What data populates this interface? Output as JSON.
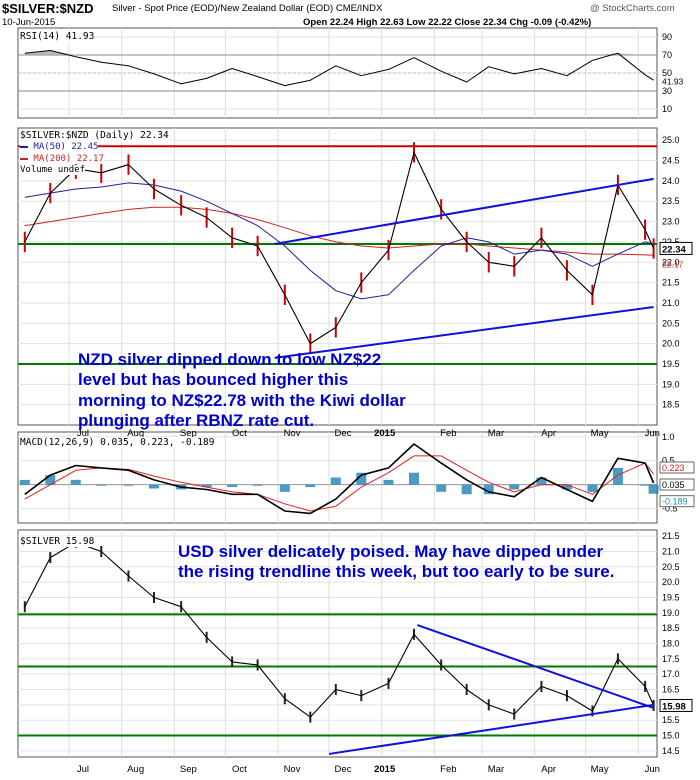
{
  "header": {
    "symbol": "$SILVER:$NZD",
    "description": "Silver - Spot Price (EOD)/New Zealand Dollar (EOD)",
    "exchange": "CME/INDX",
    "date": "10-Jun-2015",
    "ohlc": "Open 22.24  High 22.63  Low 22.22  Close 22.34  Chg -0.09 (-0.42%)",
    "watermark": "@ StockCharts.com"
  },
  "colors": {
    "price_line": "#000000",
    "ma50": "#1f1fa0",
    "ma200": "#cc2222",
    "trendline": "#1010dd",
    "support": "#007700",
    "resistance": "#cc0000",
    "macd": "#000000",
    "signal": "#dd2222",
    "histogram": "#2a8ab8",
    "annotation": "#0000cc",
    "rsi_band": "#aaaaaa",
    "last_box": "#000000"
  },
  "chart_data": [
    {
      "type": "line",
      "title": "RSI(14) 41.93",
      "y_ticks": [
        "90",
        "70",
        "50",
        "30",
        "10"
      ],
      "ylim": [
        0,
        100
      ],
      "levels": [
        70,
        30
      ],
      "last_value_label": "41.93",
      "x": [
        "2014-06-05",
        "2014-06-20",
        "2014-07-05",
        "2014-07-20",
        "2014-08-05",
        "2014-08-20",
        "2014-09-05",
        "2014-09-20",
        "2014-10-05",
        "2014-10-20",
        "2014-11-05",
        "2014-11-20",
        "2014-12-05",
        "2014-12-20",
        "2015-01-05",
        "2015-01-20",
        "2015-02-05",
        "2015-02-20",
        "2015-03-05",
        "2015-03-20",
        "2015-04-05",
        "2015-04-20",
        "2015-05-05",
        "2015-05-20",
        "2015-06-05",
        "2015-06-10"
      ],
      "series": [
        {
          "values": [
            72,
            75,
            68,
            62,
            58,
            49,
            38,
            44,
            55,
            46,
            36,
            42,
            58,
            47,
            54,
            67,
            52,
            40,
            57,
            49,
            55,
            47,
            64,
            72,
            48,
            42
          ]
        }
      ]
    },
    {
      "type": "line",
      "title": "$SILVER:$NZD (Daily) 22.34",
      "legend": [
        "MA(50) 22.45",
        "MA(200) 22.17",
        "Volume undef"
      ],
      "y_ticks": [
        "25.0",
        "24.5",
        "24.0",
        "23.5",
        "23.0",
        "22.5",
        "22.0",
        "21.5",
        "21.0",
        "20.5",
        "20.0",
        "19.5",
        "19.0",
        "18.5"
      ],
      "ylim": [
        18.0,
        25.3
      ],
      "x_ticks": [
        "Jul",
        "Aug",
        "Sep",
        "Oct",
        "Nov",
        "Dec",
        "2015",
        "Feb",
        "Mar",
        "Apr",
        "May",
        "Jun"
      ],
      "last_value_label": "22.34",
      "ma200_value_label": "22.17",
      "horizontal_lines": [
        {
          "y": 24.85,
          "color": "red"
        },
        {
          "y": 22.45,
          "color": "green"
        },
        {
          "y": 19.5,
          "color": "green"
        }
      ],
      "trendlines": [
        {
          "from": [
            "2014-10-30",
            22.45
          ],
          "to": [
            "2015-06-10",
            24.05
          ]
        },
        {
          "from": [
            "2014-10-30",
            19.65
          ],
          "to": [
            "2015-06-10",
            20.9
          ]
        }
      ],
      "x": [
        "2014-06-05",
        "2014-06-20",
        "2014-07-05",
        "2014-07-20",
        "2014-08-05",
        "2014-08-20",
        "2014-09-05",
        "2014-09-20",
        "2014-10-05",
        "2014-10-20",
        "2014-11-05",
        "2014-11-20",
        "2014-12-05",
        "2014-12-20",
        "2015-01-05",
        "2015-01-20",
        "2015-02-05",
        "2015-02-20",
        "2015-03-05",
        "2015-03-20",
        "2015-04-05",
        "2015-04-20",
        "2015-05-05",
        "2015-05-20",
        "2015-06-05",
        "2015-06-10"
      ],
      "series": [
        {
          "name": "$SILVER:$NZD",
          "values": [
            22.5,
            23.7,
            24.3,
            24.2,
            24.4,
            23.8,
            23.4,
            23.1,
            22.6,
            22.4,
            21.2,
            20.0,
            20.4,
            21.5,
            22.3,
            24.7,
            23.3,
            22.5,
            22.0,
            21.9,
            22.6,
            21.8,
            21.2,
            23.9,
            22.8,
            22.34
          ]
        },
        {
          "name": "MA(50) 22.45",
          "values": [
            23.6,
            23.7,
            23.8,
            23.85,
            23.95,
            23.9,
            23.75,
            23.5,
            23.2,
            22.9,
            22.4,
            21.8,
            21.3,
            21.1,
            21.2,
            21.8,
            22.4,
            22.6,
            22.5,
            22.2,
            22.3,
            22.2,
            21.9,
            22.2,
            22.5,
            22.45
          ]
        },
        {
          "name": "MA(200) 22.17",
          "values": [
            22.9,
            23.0,
            23.1,
            23.2,
            23.3,
            23.35,
            23.35,
            23.3,
            23.2,
            23.05,
            22.85,
            22.65,
            22.5,
            22.4,
            22.35,
            22.4,
            22.45,
            22.45,
            22.4,
            22.35,
            22.3,
            22.25,
            22.2,
            22.2,
            22.18,
            22.17
          ]
        }
      ],
      "annotation": "NZD silver dipped down to low NZ$22 level but has bounced higher this morning to NZ$22.78 with the Kiwi dollar plunging after RBNZ rate cut."
    },
    {
      "type": "line",
      "title": "MACD(12,26,9) 0.035, 0.223, -0.189",
      "y_ticks": [
        "1.0",
        "0.5",
        "0.0",
        "-0.5"
      ],
      "ylim": [
        -0.8,
        1.1
      ],
      "value_labels": [
        "0.223",
        "0.035",
        "-0.189"
      ],
      "x": [
        "2014-06-05",
        "2014-06-20",
        "2014-07-05",
        "2014-07-20",
        "2014-08-05",
        "2014-08-20",
        "2014-09-05",
        "2014-09-20",
        "2014-10-05",
        "2014-10-20",
        "2014-11-05",
        "2014-11-20",
        "2014-12-05",
        "2014-12-20",
        "2015-01-05",
        "2015-01-20",
        "2015-02-05",
        "2015-02-20",
        "2015-03-05",
        "2015-03-20",
        "2015-04-05",
        "2015-04-20",
        "2015-05-05",
        "2015-05-20",
        "2015-06-05",
        "2015-06-10"
      ],
      "series": [
        {
          "name": "MACD",
          "values": [
            -0.2,
            0.2,
            0.4,
            0.35,
            0.3,
            0.1,
            -0.05,
            -0.1,
            -0.2,
            -0.2,
            -0.55,
            -0.6,
            -0.3,
            0.2,
            0.35,
            0.85,
            0.45,
            0.1,
            -0.15,
            -0.25,
            0.15,
            -0.1,
            -0.35,
            0.55,
            0.45,
            0.035
          ]
        },
        {
          "name": "Signal",
          "values": [
            -0.3,
            0.0,
            0.3,
            0.35,
            0.32,
            0.18,
            0.05,
            -0.05,
            -0.15,
            -0.2,
            -0.4,
            -0.55,
            -0.45,
            -0.05,
            0.25,
            0.6,
            0.6,
            0.3,
            0.05,
            -0.15,
            0.0,
            0.0,
            -0.2,
            0.2,
            0.45,
            0.223
          ]
        },
        {
          "name": "Histogram",
          "values": [
            0.1,
            0.2,
            0.1,
            0.0,
            -0.02,
            -0.08,
            -0.1,
            -0.05,
            -0.05,
            0.0,
            -0.15,
            -0.05,
            0.15,
            0.25,
            0.1,
            0.25,
            -0.15,
            -0.2,
            -0.2,
            -0.1,
            0.15,
            -0.1,
            -0.15,
            0.35,
            0.0,
            -0.189
          ]
        }
      ]
    },
    {
      "type": "line",
      "title": "$SILVER 15.98",
      "y_ticks": [
        "21.5",
        "21.0",
        "20.5",
        "20.0",
        "19.5",
        "19.0",
        "18.5",
        "18.0",
        "17.5",
        "17.0",
        "16.5",
        "16.0",
        "15.5",
        "15.0",
        "14.5"
      ],
      "ylim": [
        14.3,
        21.7
      ],
      "x_ticks": [
        "Jul",
        "Aug",
        "Sep",
        "Oct",
        "Nov",
        "Dec",
        "2015",
        "Feb",
        "Mar",
        "Apr",
        "May",
        "Jun"
      ],
      "last_value_label": "15.98",
      "horizontal_lines": [
        {
          "y": 18.95,
          "color": "green"
        },
        {
          "y": 17.25,
          "color": "green"
        },
        {
          "y": 15.0,
          "color": "green"
        }
      ],
      "trendlines": [
        {
          "from": [
            "2015-01-22",
            18.6
          ],
          "to": [
            "2015-06-10",
            15.9
          ]
        },
        {
          "from": [
            "2014-12-01",
            14.4
          ],
          "to": [
            "2015-06-10",
            16.0
          ]
        }
      ],
      "x": [
        "2014-06-05",
        "2014-06-20",
        "2014-07-05",
        "2014-07-20",
        "2014-08-05",
        "2014-08-20",
        "2014-09-05",
        "2014-09-20",
        "2014-10-05",
        "2014-10-20",
        "2014-11-05",
        "2014-11-20",
        "2014-12-05",
        "2014-12-20",
        "2015-01-05",
        "2015-01-20",
        "2015-02-05",
        "2015-02-20",
        "2015-03-05",
        "2015-03-20",
        "2015-04-05",
        "2015-04-20",
        "2015-05-05",
        "2015-05-20",
        "2015-06-05",
        "2015-06-10"
      ],
      "series": [
        {
          "name": "$SILVER",
          "values": [
            19.2,
            20.8,
            21.3,
            21.0,
            20.2,
            19.5,
            19.2,
            18.2,
            17.4,
            17.3,
            16.2,
            15.6,
            16.5,
            16.3,
            16.7,
            18.3,
            17.3,
            16.5,
            16.0,
            15.7,
            16.6,
            16.3,
            15.8,
            17.5,
            16.6,
            15.98
          ]
        }
      ],
      "annotation": "USD silver delicately poised. May have dipped under the rising trendline this week, but too early to be sure."
    }
  ]
}
